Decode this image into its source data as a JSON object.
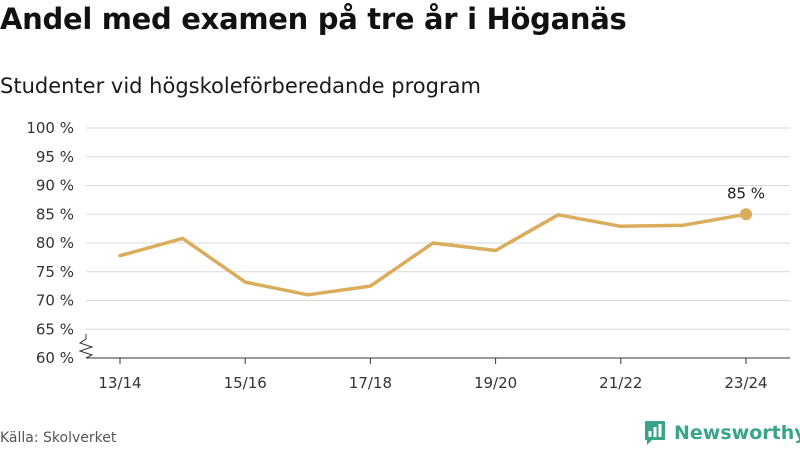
{
  "header": {
    "title": "Andel med examen på tre år i Höganäs",
    "subtitle": "Studenter vid högskoleförberedande program"
  },
  "footer": {
    "source": "Källa: Skolverket",
    "brand": "Newsworthy",
    "brand_icon": "bar-chart-speech-icon"
  },
  "colors": {
    "line": "#d9ad5c",
    "grid": "#d9d9d9",
    "axis": "#333333",
    "brand": "#3aa48a"
  },
  "chart_data": {
    "type": "line",
    "title": "Andel med examen på tre år i Höganäs",
    "subtitle": "Studenter vid högskoleförberedande program",
    "x": [
      "13/14",
      "14/15",
      "15/16",
      "16/17",
      "17/18",
      "18/19",
      "19/20",
      "20/21",
      "21/22",
      "22/23",
      "23/24"
    ],
    "tick_labels_x": [
      "13/14",
      "15/16",
      "17/18",
      "19/20",
      "21/22",
      "23/24"
    ],
    "series": [
      {
        "values": [
          77.8,
          80.8,
          73.2,
          71.0,
          72.5,
          80.0,
          78.7,
          84.9,
          82.9,
          83.1,
          85.0
        ]
      }
    ],
    "ylim": [
      60,
      100
    ],
    "yticks": [
      60,
      65,
      70,
      75,
      80,
      85,
      90,
      95,
      100
    ],
    "y_tick_labels": [
      "60 %",
      "65 %",
      "70 %",
      "75 %",
      "80 %",
      "85 %",
      "90 %",
      "95 %",
      "100 %"
    ],
    "axis_break": true,
    "grid": true,
    "end_label": "85 %"
  }
}
